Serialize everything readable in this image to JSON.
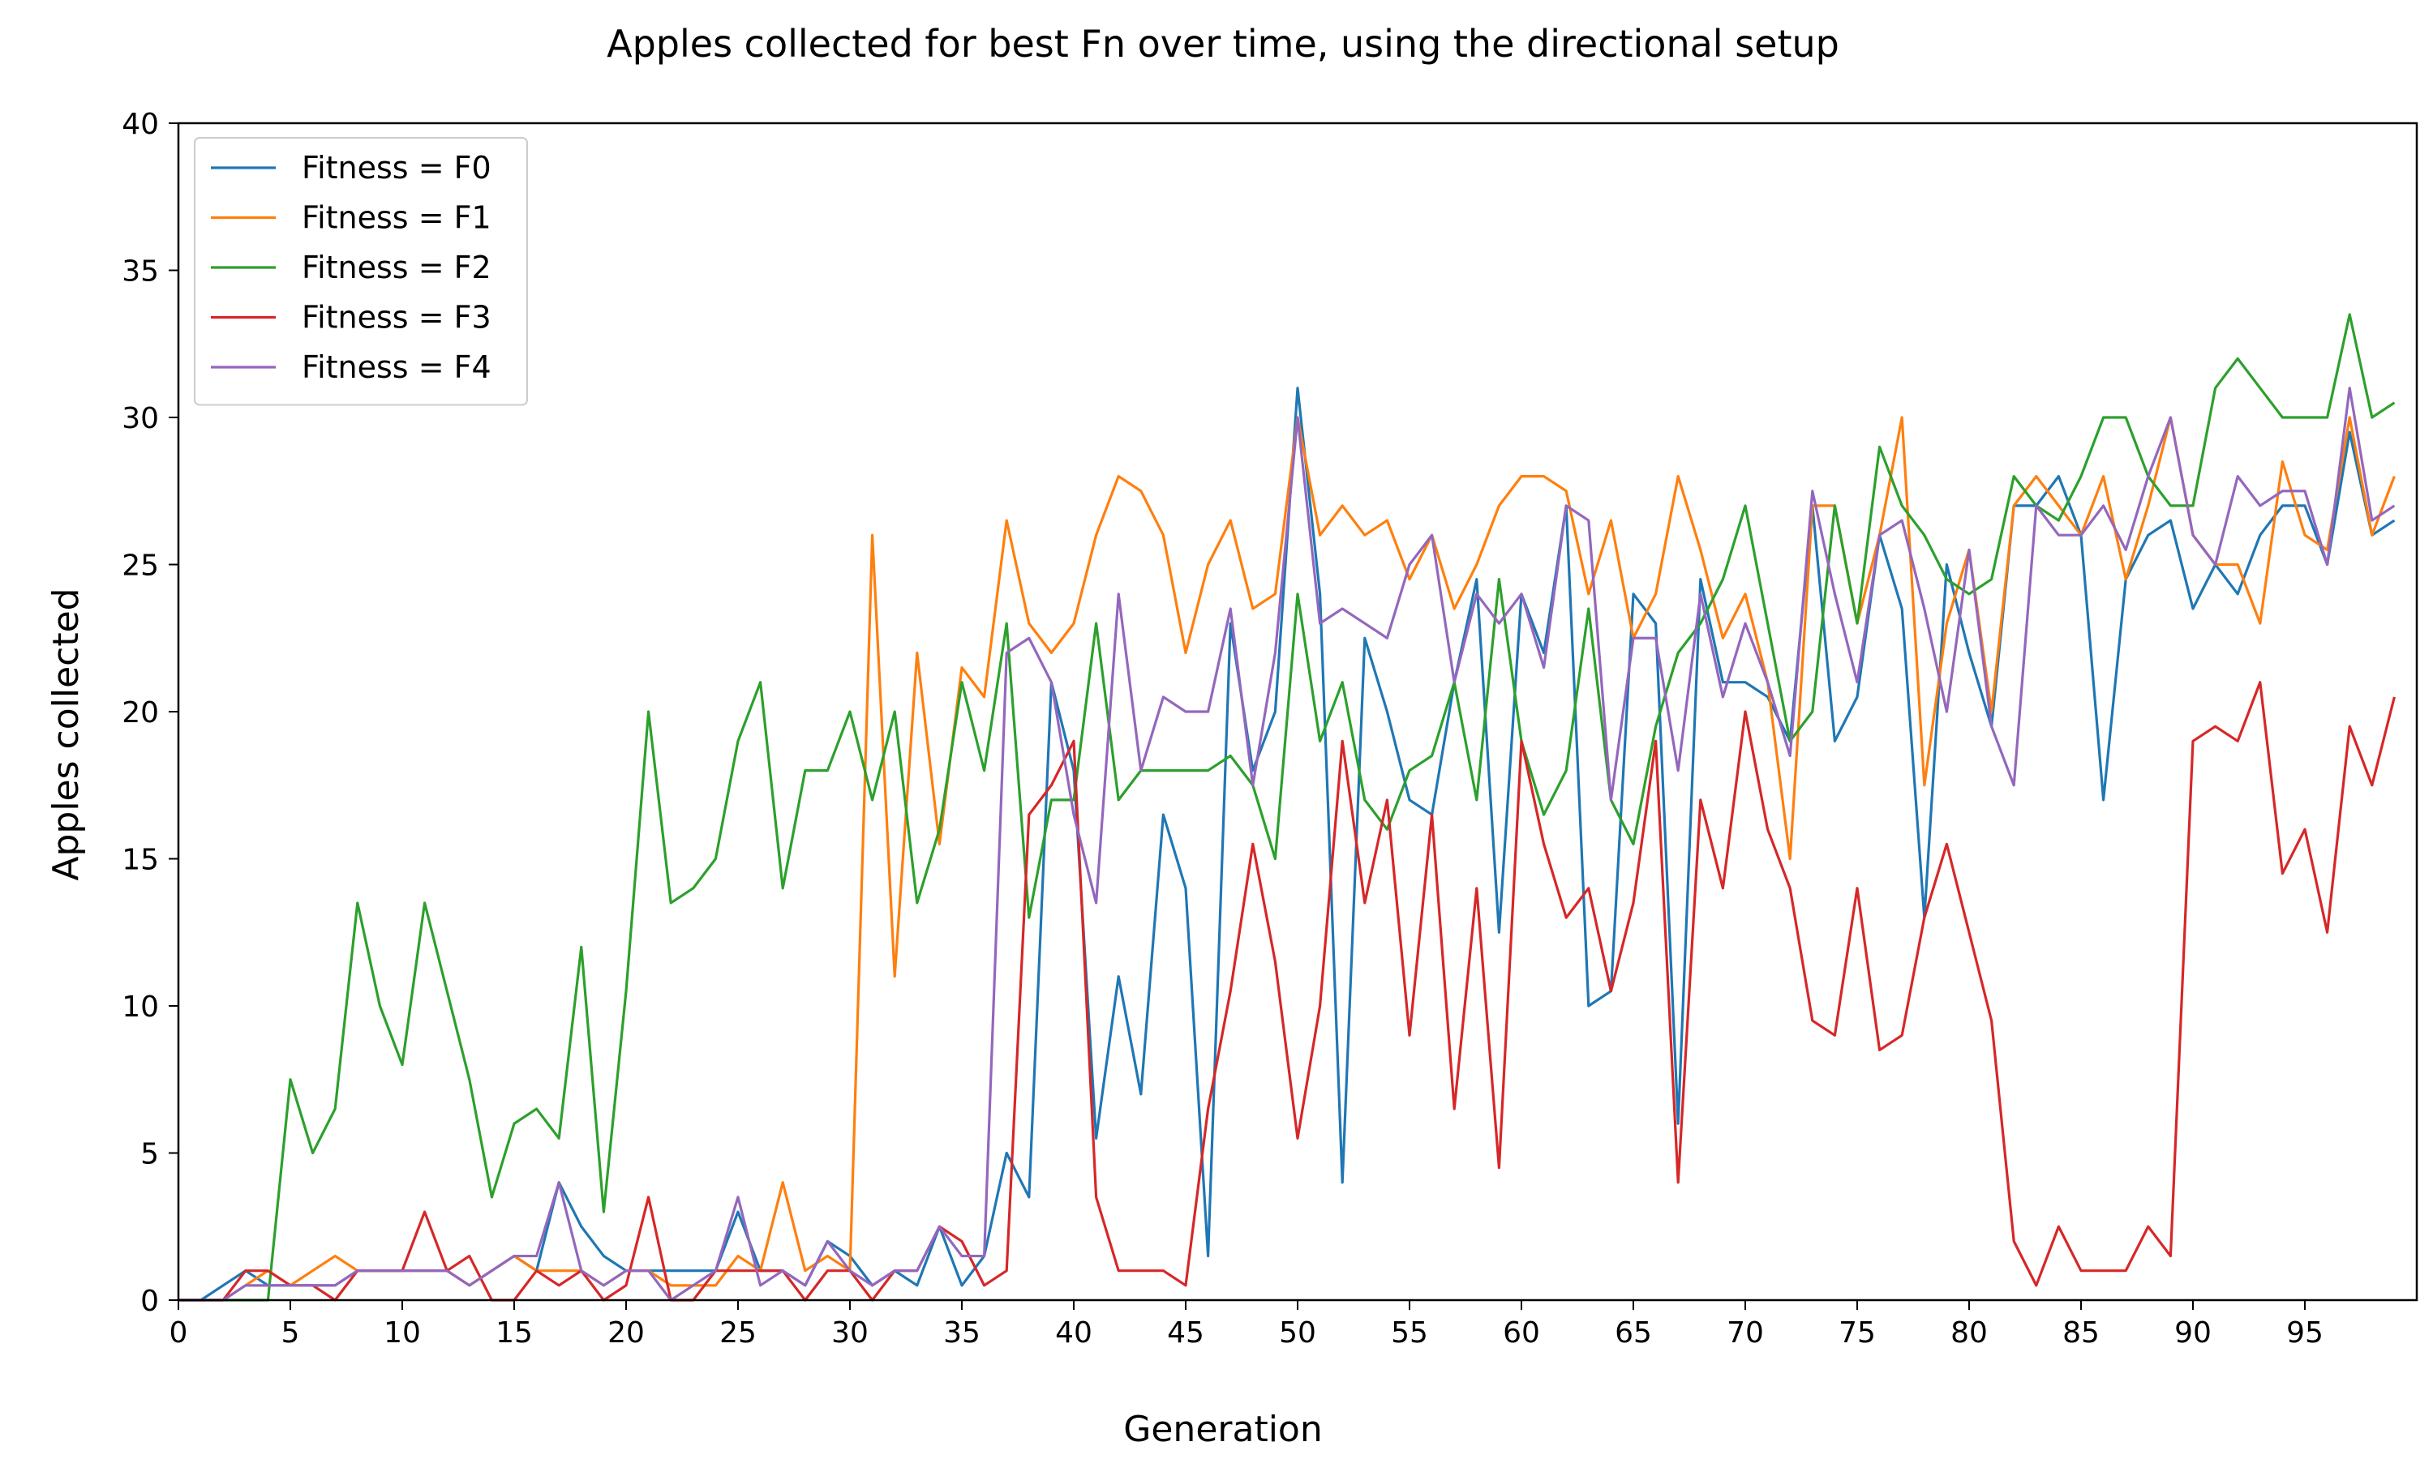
{
  "chart_data": {
    "type": "line",
    "title": "Apples collected for best Fn over time, using the directional setup",
    "xlabel": "Generation",
    "ylabel": "Apples collected",
    "xlim": [
      0,
      100
    ],
    "ylim": [
      0,
      40
    ],
    "xticks": [
      0,
      5,
      10,
      15,
      20,
      25,
      30,
      35,
      40,
      45,
      50,
      55,
      60,
      65,
      70,
      75,
      80,
      85,
      90,
      95
    ],
    "yticks": [
      0,
      5,
      10,
      15,
      20,
      25,
      30,
      35,
      40
    ],
    "grid": false,
    "legend_position": "upper-left",
    "series": [
      {
        "name": "Fitness = F0",
        "color": "#1f77b4",
        "values": [
          0,
          0,
          0.5,
          1,
          0.5,
          0.5,
          0.5,
          0.5,
          1,
          1,
          1,
          1,
          1,
          0.5,
          1,
          1.5,
          1,
          4,
          2.5,
          1.5,
          1,
          1,
          1,
          1,
          1,
          3,
          1,
          1,
          0.5,
          2,
          1.5,
          0.5,
          1,
          0.5,
          2.5,
          0.5,
          1.5,
          5,
          3.5,
          21,
          18,
          5.5,
          11,
          7,
          16.5,
          14,
          1.5,
          23,
          18,
          20,
          31,
          24,
          4,
          22.5,
          20,
          17,
          16.5,
          21,
          24.5,
          12.5,
          24,
          22,
          27,
          10,
          10.5,
          24,
          23,
          6,
          24.5,
          21,
          21,
          20.5,
          19,
          27,
          19,
          20.5,
          26,
          23.5,
          13,
          25,
          22,
          19.5,
          27,
          27,
          28,
          26,
          17,
          24.5,
          26,
          26.5,
          23.5,
          25,
          24,
          26,
          27,
          27,
          25,
          29.5,
          26,
          26.5
        ]
      },
      {
        "name": "Fitness = F1",
        "color": "#ff7f0e",
        "values": [
          0,
          0,
          0,
          0.5,
          1,
          0.5,
          1,
          1.5,
          1,
          1,
          1,
          1,
          1,
          0.5,
          1,
          1.5,
          1,
          1,
          1,
          0.5,
          1,
          1,
          0.5,
          0.5,
          0.5,
          1.5,
          1,
          4,
          1,
          1.5,
          1,
          26,
          11,
          22,
          15.5,
          21.5,
          20.5,
          26.5,
          23,
          22,
          23,
          26,
          28,
          27.5,
          26,
          22,
          25,
          26.5,
          23.5,
          24,
          30,
          26,
          27,
          26,
          26.5,
          24.5,
          26,
          23.5,
          25,
          27,
          28,
          28,
          27.5,
          24,
          26.5,
          22.5,
          24,
          28,
          25.5,
          22.5,
          24,
          21,
          15,
          27,
          27,
          23,
          26,
          30,
          17.5,
          23,
          25.5,
          20,
          27,
          28,
          27,
          26,
          28,
          24.5,
          27,
          30,
          26,
          25,
          25,
          23,
          28.5,
          26,
          25.5,
          30,
          26,
          28
        ]
      },
      {
        "name": "Fitness = F2",
        "color": "#2ca02c",
        "values": [
          0,
          0,
          0,
          0,
          0,
          7.5,
          5,
          6.5,
          13.5,
          10,
          8,
          13.5,
          10.5,
          7.5,
          3.5,
          6,
          6.5,
          5.5,
          12,
          3,
          10.5,
          20,
          13.5,
          14,
          15,
          19,
          21,
          14,
          18,
          18,
          20,
          17,
          20,
          13.5,
          16,
          21,
          18,
          23,
          13,
          17,
          17,
          23,
          17,
          18,
          18,
          18,
          18,
          18.5,
          17.5,
          15,
          24,
          19,
          21,
          17,
          16,
          18,
          18.5,
          21,
          17,
          24.5,
          19,
          16.5,
          18,
          23.5,
          17,
          15.5,
          19.5,
          22,
          23,
          24.5,
          27,
          23,
          19,
          20,
          27,
          23,
          29,
          27,
          26,
          24.5,
          24,
          24.5,
          28,
          27,
          26.5,
          28,
          30,
          30,
          28,
          27,
          27,
          31,
          32,
          31,
          30,
          30,
          30,
          33.5,
          30,
          30.5
        ]
      },
      {
        "name": "Fitness = F3",
        "color": "#d62728",
        "values": [
          0,
          0,
          0,
          1,
          1,
          0.5,
          0.5,
          0,
          1,
          1,
          1,
          3,
          1,
          1.5,
          0,
          0,
          1,
          0.5,
          1,
          0,
          0.5,
          3.5,
          0,
          0,
          1,
          1,
          1,
          1,
          0,
          1,
          1,
          0,
          1,
          1,
          2.5,
          2,
          0.5,
          1,
          16.5,
          17.5,
          19,
          3.5,
          1,
          1,
          1,
          0.5,
          6.5,
          10.5,
          15.5,
          11.5,
          5.5,
          10,
          19,
          13.5,
          17,
          9,
          16.5,
          6.5,
          14,
          4.5,
          19,
          15.5,
          13,
          14,
          10.5,
          13.5,
          19,
          4,
          17,
          14,
          20,
          16,
          14,
          9.5,
          9,
          14,
          8.5,
          9,
          13,
          15.5,
          12.5,
          9.5,
          2,
          0.5,
          2.5,
          1,
          1,
          1,
          2.5,
          1.5,
          19,
          19.5,
          19,
          21,
          14.5,
          16,
          12.5,
          19.5,
          17.5,
          20.5
        ]
      },
      {
        "name": "Fitness = F4",
        "color": "#9467bd",
        "values": [
          0,
          0,
          0,
          0.5,
          0.5,
          0.5,
          0.5,
          0.5,
          1,
          1,
          1,
          1,
          1,
          0.5,
          1,
          1.5,
          1.5,
          4,
          1,
          0.5,
          1,
          1,
          0,
          0.5,
          1,
          3.5,
          0.5,
          1,
          0.5,
          2,
          1,
          0.5,
          1,
          1,
          2.5,
          1.5,
          1.5,
          22,
          22.5,
          21,
          16.5,
          13.5,
          24,
          18,
          20.5,
          20,
          20,
          23.5,
          17.5,
          22,
          30,
          23,
          23.5,
          23,
          22.5,
          25,
          26,
          21,
          24,
          23,
          24,
          21.5,
          27,
          26.5,
          17,
          22.5,
          22.5,
          18,
          24,
          20.5,
          23,
          21,
          18.5,
          27.5,
          24,
          21,
          26,
          26.5,
          23.5,
          20,
          25.5,
          19.5,
          17.5,
          27,
          26,
          26,
          27,
          25.5,
          28,
          30,
          26,
          25,
          28,
          27,
          27.5,
          27.5,
          25,
          31,
          26.5,
          27
        ]
      }
    ]
  }
}
